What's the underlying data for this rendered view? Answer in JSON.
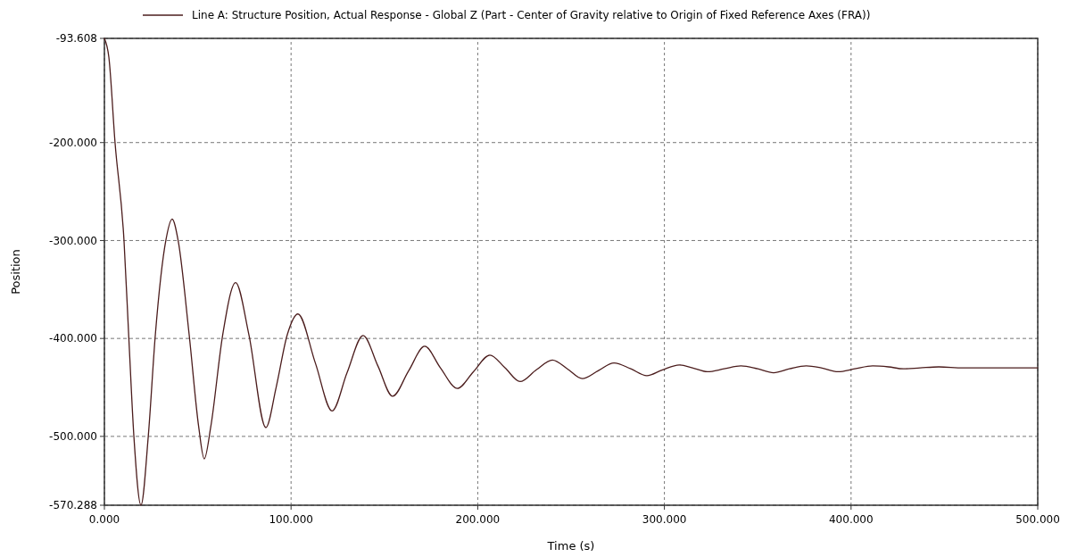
{
  "chart_data": {
    "type": "line",
    "xlabel": "Time (s)",
    "ylabel": "Position",
    "legend": "top",
    "grid": true,
    "line_style": "solid",
    "marker": "none",
    "xlim": [
      0,
      500
    ],
    "ylim": [
      -570.288,
      -93.608
    ],
    "xticks": [
      {
        "value": 0,
        "label": "0.000"
      },
      {
        "value": 100,
        "label": "100.000"
      },
      {
        "value": 200,
        "label": "200.000"
      },
      {
        "value": 300,
        "label": "300.000"
      },
      {
        "value": 400,
        "label": "400.000"
      },
      {
        "value": 500,
        "label": "500.000"
      }
    ],
    "yticks": [
      {
        "value": -570.288,
        "label": "-570.288"
      },
      {
        "value": -500,
        "label": "-500.000"
      },
      {
        "value": -400,
        "label": "-400.000"
      },
      {
        "value": -300,
        "label": "-300.000"
      },
      {
        "value": -200,
        "label": "-200.000"
      },
      {
        "value": -93.608,
        "label": "-93.608"
      }
    ],
    "series": [
      {
        "name": "Line A: Structure Position, Actual Response - Global Z (Part - Center of Gravity relative to Origin of Fixed Reference Axes (FRA))",
        "color": "#4b1c1c",
        "x": [
          0,
          2.4,
          5.7,
          10.5,
          13.1,
          15.8,
          19.6,
          23.5,
          27.3,
          33,
          36.3,
          39.5,
          45.4,
          50.5,
          53.5,
          57,
          63.4,
          70.3,
          77.4,
          86.5,
          92,
          98,
          103.7,
          113,
          122,
          130,
          138.6,
          146.5,
          154.4,
          163,
          171.6,
          180,
          189,
          197.7,
          206.5,
          214.6,
          222.7,
          231.4,
          240,
          248,
          256,
          264.5,
          273,
          282,
          290.6,
          299,
          308,
          315,
          323,
          332,
          341,
          350,
          358.5,
          367,
          376,
          384,
          393,
          402,
          411.6,
          420,
          428,
          437,
          447,
          460,
          480,
          500
        ],
        "values": [
          -93.608,
          -113,
          -200,
          -300,
          -400,
          -500,
          -570.288,
          -500,
          -396,
          -299,
          -278,
          -300,
          -396,
          -490,
          -523,
          -490,
          -396,
          -343,
          -396,
          -491,
          -450,
          -396,
          -375,
          -425,
          -474,
          -435,
          -397,
          -428,
          -459,
          -433,
          -408,
          -430,
          -451,
          -434,
          -417,
          -430,
          -444,
          -432,
          -422,
          -431,
          -441,
          -433,
          -425,
          -431,
          -438,
          -432,
          -427,
          -430,
          -434,
          -431,
          -428,
          -431,
          -435,
          -431,
          -428,
          -430,
          -434,
          -431,
          -428,
          -429,
          -431,
          -430,
          -429,
          -430,
          -430,
          -430
        ]
      }
    ]
  }
}
